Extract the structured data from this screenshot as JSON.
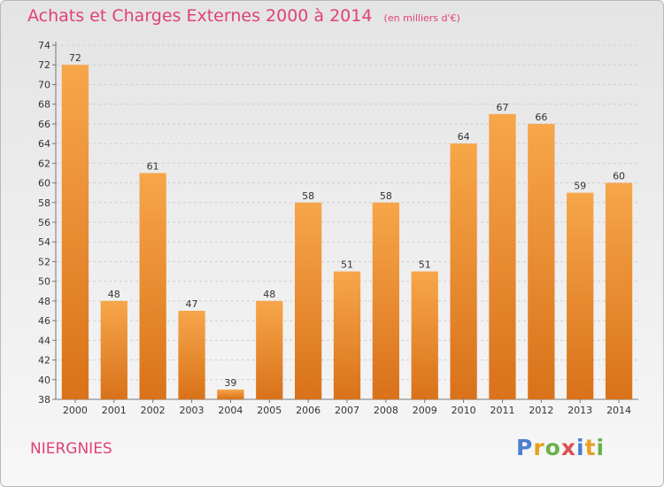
{
  "header": {
    "title": "Achats et Charges Externes 2000 à 2014",
    "unit": "(en milliers d'€)"
  },
  "commune": "NIERGNIES",
  "logo": {
    "letters": [
      "P",
      "r",
      "o",
      "x",
      "i",
      "t",
      "i"
    ],
    "colors": [
      "#4a7fd0",
      "#e8a020",
      "#6ab04c",
      "#e05050",
      "#4a7fd0",
      "#e8a020",
      "#6ab04c"
    ]
  },
  "colors": {
    "bar_light": "#f7a64a",
    "bar_dark": "#d9721a",
    "title": "#e0407a"
  },
  "chart_data": {
    "type": "bar",
    "title": "Achats et Charges Externes 2000 à 2014",
    "subtitle": "(en milliers d'€)",
    "categories": [
      "2000",
      "2001",
      "2002",
      "2003",
      "2004",
      "2005",
      "2006",
      "2007",
      "2008",
      "2009",
      "2010",
      "2011",
      "2012",
      "2013",
      "2014"
    ],
    "values": [
      72,
      48,
      61,
      47,
      39,
      48,
      58,
      51,
      58,
      51,
      64,
      67,
      66,
      59,
      60
    ],
    "ylim": [
      38,
      74
    ],
    "yticks": [
      38,
      40,
      42,
      44,
      46,
      48,
      50,
      52,
      54,
      56,
      58,
      60,
      62,
      64,
      66,
      68,
      70,
      72,
      74
    ],
    "grid": true
  }
}
